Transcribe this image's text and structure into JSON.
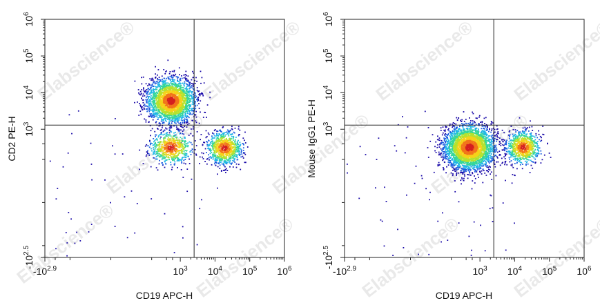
{
  "watermark": "Elabscience®",
  "chart_data": [
    {
      "type": "scatter",
      "plot_style": "flow cytometry pseudocolor density dot plot",
      "xlabel": "CD19 APC-H",
      "ylabel": "CD2 PE-H",
      "x_scale": "biexponential",
      "y_scale": "biexponential",
      "x_ticks": [
        {
          "label": "-10",
          "sup": "2.9",
          "value": -794
        },
        {
          "label": "10",
          "sup": "3",
          "value": 1000
        },
        {
          "label": "10",
          "sup": "4",
          "value": 10000
        },
        {
          "label": "10",
          "sup": "5",
          "value": 100000
        },
        {
          "label": "10",
          "sup": "6",
          "value": 1000000
        }
      ],
      "y_ticks": [
        {
          "label": "-10",
          "sup": "2.5",
          "value": -316
        },
        {
          "label": "10",
          "sup": "3",
          "value": 1000
        },
        {
          "label": "10",
          "sup": "4",
          "value": 10000
        },
        {
          "label": "10",
          "sup": "5",
          "value": 100000
        },
        {
          "label": "10",
          "sup": "6",
          "value": 1000000
        }
      ],
      "quadrant_gate": {
        "x": 2500,
        "y": 1300
      },
      "density_colormap": [
        "#1a0aa8",
        "#1f5fe0",
        "#1fb7e6",
        "#35d69a",
        "#b5e22e",
        "#f5d21a",
        "#f2761a",
        "#d42020"
      ],
      "populations": [
        {
          "name": "CD19- CD2+",
          "x_center": 520,
          "y_center": 6200,
          "x_spread": 0.34,
          "y_spread": 0.3,
          "count": 2600
        },
        {
          "name": "CD19- CD2-",
          "x_center": 520,
          "y_center": 330,
          "x_spread": 0.3,
          "y_spread": 0.22,
          "count": 650
        },
        {
          "name": "CD19+ CD2-",
          "x_center": 18000,
          "y_center": 320,
          "x_spread": 0.25,
          "y_spread": 0.22,
          "count": 900
        }
      ]
    },
    {
      "type": "scatter",
      "plot_style": "flow cytometry pseudocolor density dot plot",
      "xlabel": "CD19 APC-H",
      "ylabel": "Mouse IgG1 PE-H",
      "x_scale": "biexponential",
      "y_scale": "biexponential",
      "x_ticks": [
        {
          "label": "-10",
          "sup": "2.9",
          "value": -794
        },
        {
          "label": "10",
          "sup": "3",
          "value": 1000
        },
        {
          "label": "10",
          "sup": "4",
          "value": 10000
        },
        {
          "label": "10",
          "sup": "5",
          "value": 100000
        },
        {
          "label": "10",
          "sup": "6",
          "value": 1000000
        }
      ],
      "y_ticks": [
        {
          "label": "-10",
          "sup": "2.5",
          "value": -316
        },
        {
          "label": "10",
          "sup": "3",
          "value": 1000
        },
        {
          "label": "10",
          "sup": "4",
          "value": 10000
        },
        {
          "label": "10",
          "sup": "5",
          "value": 100000
        },
        {
          "label": "10",
          "sup": "6",
          "value": 1000000
        }
      ],
      "quadrant_gate": {
        "x": 2500,
        "y": 1300
      },
      "density_colormap": [
        "#1a0aa8",
        "#1f5fe0",
        "#1fb7e6",
        "#35d69a",
        "#b5e22e",
        "#f5d21a",
        "#f2761a",
        "#d42020"
      ],
      "populations": [
        {
          "name": "CD19- IgG1-",
          "x_center": 480,
          "y_center": 330,
          "x_spread": 0.36,
          "y_spread": 0.3,
          "count": 3200
        },
        {
          "name": "CD19+ IgG1-",
          "x_center": 17000,
          "y_center": 330,
          "x_spread": 0.24,
          "y_spread": 0.22,
          "count": 850
        }
      ]
    }
  ]
}
